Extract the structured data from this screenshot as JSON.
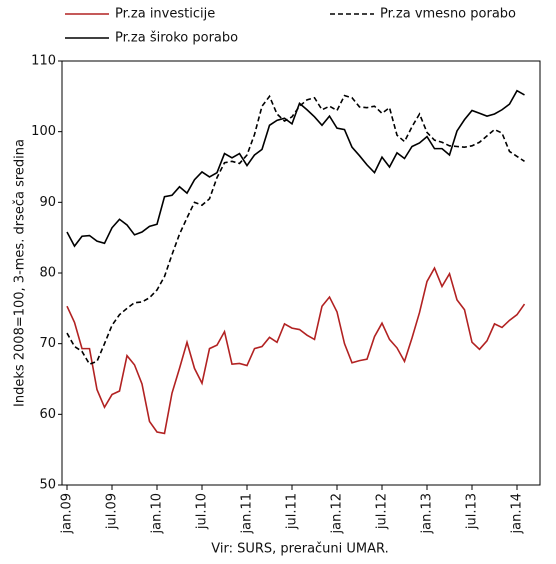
{
  "chart_data": {
    "type": "line",
    "y_label": "Indeks 2008=100, 3-mes. drseča sredina",
    "source": "Vir: SURS, preračuni UMAR.",
    "categories": [
      "jan.09",
      null,
      null,
      null,
      null,
      null,
      "jul.09",
      null,
      null,
      null,
      null,
      null,
      "jan.10",
      null,
      null,
      null,
      null,
      null,
      "jul.10",
      null,
      null,
      null,
      null,
      null,
      "jan.11",
      null,
      null,
      null,
      null,
      null,
      "jul.11",
      null,
      null,
      null,
      null,
      null,
      "jan.12",
      null,
      null,
      null,
      null,
      null,
      "jul.12",
      null,
      null,
      null,
      null,
      null,
      "jan.13",
      null,
      null,
      null,
      null,
      null,
      "jul.13",
      null,
      null,
      null,
      null,
      null,
      "jan.14",
      null
    ],
    "series": [
      {
        "name": "Pr.za investicije",
        "color": "#b22222",
        "dash": false,
        "values": [
          75.3,
          73,
          69.3,
          69.3,
          63.5,
          61,
          62.8,
          63.3,
          68.3,
          67,
          64.3,
          59,
          57.5,
          57.3,
          63,
          66.5,
          70.2,
          66.5,
          64.4,
          69.3,
          69.8,
          71.7,
          67.1,
          67.2,
          66.9,
          69.3,
          69.6,
          70.9,
          70.2,
          72.8,
          72.2,
          72,
          71.2,
          70.6,
          75.3,
          76.6,
          74.5,
          70,
          67.3,
          67.6,
          67.8,
          71,
          72.9,
          70.6,
          69.4,
          67.5,
          70.8,
          74.4,
          78.8,
          80.7,
          78.1,
          79.9,
          76.2,
          74.8,
          70.2,
          69.2,
          70.4,
          72.8,
          72.3,
          73.3,
          74.1,
          75.6
        ]
      },
      {
        "name": "Pr.za vmesno porabo",
        "color": "#000000",
        "dash": true,
        "values": [
          71.5,
          69.6,
          68.9,
          67.1,
          67.5,
          70.0,
          72.6,
          74.1,
          75.0,
          75.8,
          75.9,
          76.5,
          77.6,
          79.5,
          82.6,
          85.5,
          87.8,
          90.0,
          89.6,
          90.5,
          93.5,
          95.6,
          95.8,
          95.5,
          96.7,
          99.6,
          103.6,
          105.0,
          102.5,
          101.5,
          102.1,
          103.6,
          104.5,
          104.8,
          103.1,
          103.6,
          103.0,
          105.1,
          104.8,
          103.5,
          103.4,
          103.6,
          102.6,
          103.4,
          99.5,
          98.6,
          100.7,
          102.5,
          99.9,
          98.8,
          98.5,
          98.0,
          97.9,
          97.8,
          98.0,
          98.5,
          99.4,
          100.3,
          99.8,
          97.2,
          96.5,
          95.8
        ]
      },
      {
        "name": "Pr.za široko porabo",
        "color": "#000000",
        "dash": false,
        "values": [
          85.8,
          83.8,
          85.2,
          85.3,
          84.5,
          84.2,
          86.4,
          87.6,
          86.8,
          85.4,
          85.8,
          86.6,
          86.9,
          90.8,
          91.0,
          92.2,
          91.3,
          93.2,
          94.3,
          93.6,
          94.2,
          96.9,
          96.3,
          96.9,
          95.2,
          96.7,
          97.5,
          100.9,
          101.6,
          101.9,
          101.1,
          104.0,
          103.1,
          102.1,
          100.9,
          102.2,
          100.5,
          100.3,
          97.8,
          96.6,
          95.3,
          94.2,
          96.4,
          95.0,
          97.0,
          96.2,
          97.9,
          98.4,
          99.3,
          97.6,
          97.6,
          96.7,
          100.1,
          101.7,
          103.0,
          102.6,
          102.2,
          102.5,
          103.1,
          103.9,
          105.8,
          105.2
        ]
      }
    ],
    "ylim": [
      50,
      110
    ],
    "yticks": [
      50,
      60,
      70,
      80,
      90,
      100,
      110
    ],
    "grid": false
  }
}
